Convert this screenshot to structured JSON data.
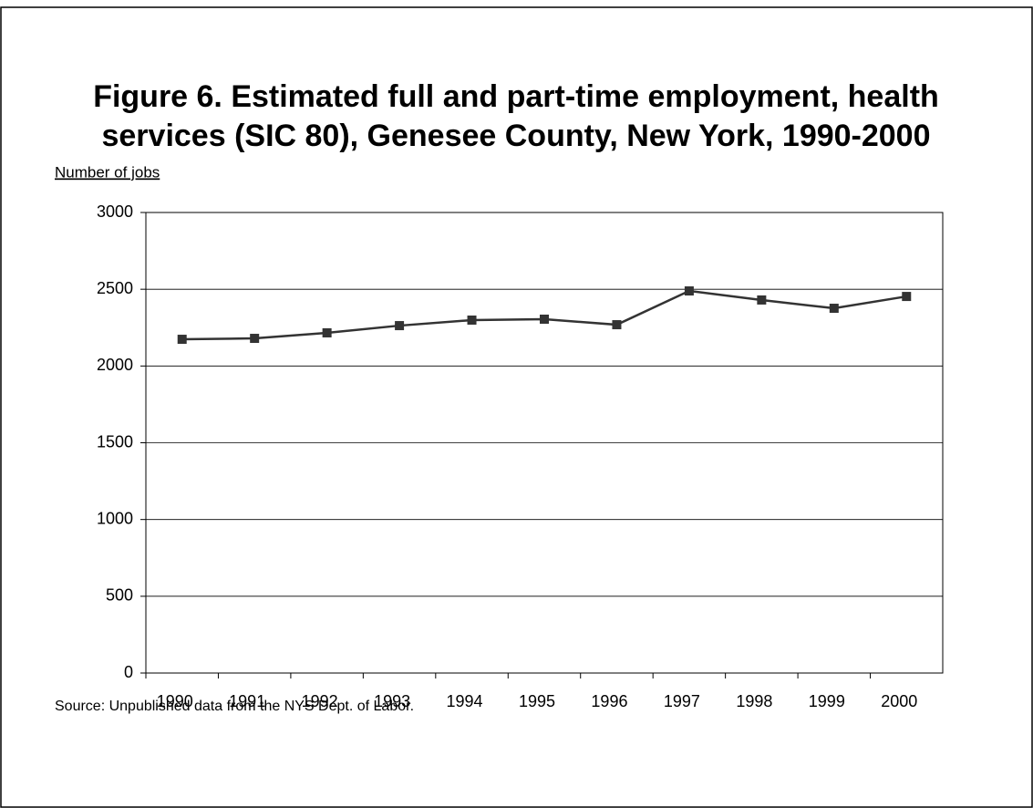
{
  "chart_data": {
    "type": "line",
    "title": [
      "Figure 6.  Estimated full and part-time employment, health",
      "services (SIC 80), Genesee County, New York, 1990-2000"
    ],
    "y_label": "Number of jobs",
    "source": "Source: Unpublished data from the NYS Dept. of  Labor.",
    "categories": [
      "1990",
      "1991",
      "1992",
      "1993",
      "1994",
      "1995",
      "1996",
      "1997",
      "1998",
      "1999",
      "2000"
    ],
    "series": [
      {
        "name": "Employment",
        "color": "#333333",
        "values": [
          2174,
          2180,
          2216,
          2263,
          2299,
          2305,
          2269,
          2489,
          2430,
          2376,
          2453
        ]
      }
    ],
    "ylim": [
      0,
      3000
    ],
    "yticks": [
      0,
      500,
      1000,
      1500,
      2000,
      2500,
      3000
    ],
    "grid": true
  }
}
